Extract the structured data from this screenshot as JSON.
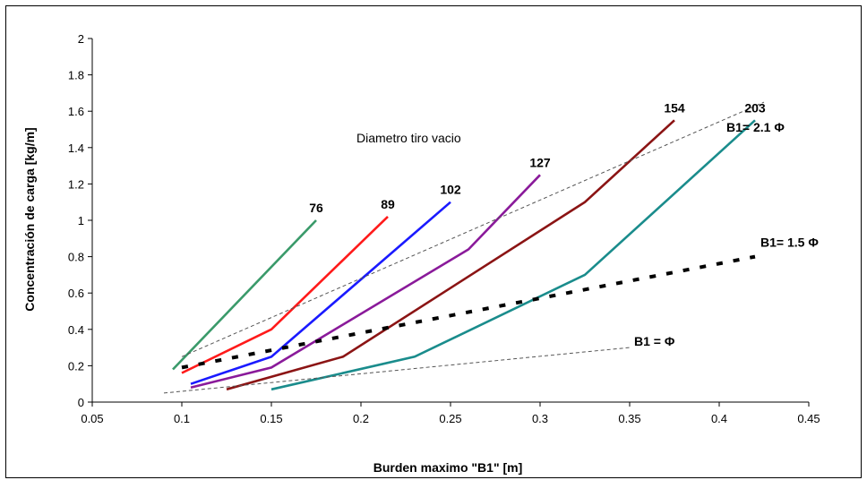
{
  "chart_data": {
    "type": "line",
    "xlabel": "Burden maximo \"B1\" [m]",
    "ylabel": "Concentración de carga [kg/m]",
    "xlim": [
      0.05,
      0.45
    ],
    "ylim": [
      0,
      2
    ],
    "xticks": [
      "0.05",
      "0.1",
      "0.15",
      "0.2",
      "0.25",
      "0.3",
      "0.35",
      "0.4",
      "0.45"
    ],
    "yticks": [
      "0",
      "0.2",
      "0.4",
      "0.6",
      "0.8",
      "1",
      "1.2",
      "1.4",
      "1.6",
      "1.8",
      "2"
    ],
    "grid": false,
    "annotation": "Diametro tiro vacio",
    "series": [
      {
        "name": "76",
        "color": "#3a9a6a",
        "style": "solid",
        "x": [
          0.095,
          0.175
        ],
        "y": [
          0.18,
          1.0
        ]
      },
      {
        "name": "89",
        "color": "#ff1a1a",
        "style": "solid",
        "x": [
          0.1,
          0.15,
          0.215
        ],
        "y": [
          0.16,
          0.4,
          1.02
        ]
      },
      {
        "name": "102",
        "color": "#1a1aff",
        "style": "solid",
        "x": [
          0.105,
          0.15,
          0.25
        ],
        "y": [
          0.1,
          0.25,
          1.1
        ]
      },
      {
        "name": "127",
        "color": "#8a1a9a",
        "style": "solid",
        "x": [
          0.105,
          0.15,
          0.26,
          0.3
        ],
        "y": [
          0.08,
          0.19,
          0.84,
          1.25
        ]
      },
      {
        "name": "154",
        "color": "#8b1414",
        "style": "solid",
        "x": [
          0.125,
          0.19,
          0.325,
          0.375
        ],
        "y": [
          0.07,
          0.25,
          1.1,
          1.55
        ]
      },
      {
        "name": "203",
        "color": "#1a8c8c",
        "style": "solid",
        "x": [
          0.15,
          0.23,
          0.325,
          0.42
        ],
        "y": [
          0.07,
          0.25,
          0.7,
          1.55
        ]
      },
      {
        "name": "B1= 2.1 Φ",
        "color": "#555555",
        "style": "dashed",
        "x": [
          0.1,
          0.425
        ],
        "y": [
          0.25,
          1.65
        ]
      },
      {
        "name": "B1= 1.5 Φ",
        "color": "#000000",
        "style": "bold-dashed",
        "x": [
          0.1,
          0.42
        ],
        "y": [
          0.19,
          0.8
        ]
      },
      {
        "name": "B1 = Φ",
        "color": "#555555",
        "style": "dashed",
        "x": [
          0.09,
          0.35
        ],
        "y": [
          0.05,
          0.3
        ]
      }
    ]
  }
}
